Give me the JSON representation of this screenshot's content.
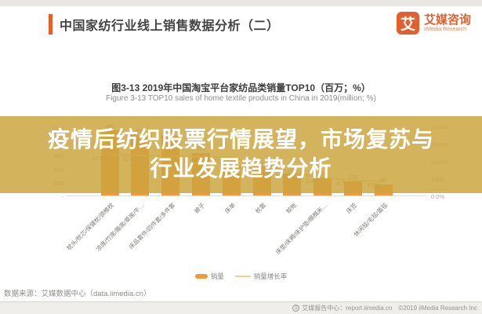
{
  "header": {
    "title": "中国家纺行业线上销售数据分析（二）",
    "logo": {
      "mark": "艾",
      "brand_cn": "艾媒咨询",
      "brand_en": "iiMedia Research"
    }
  },
  "figure": {
    "title_cn": "图3-13 2019年中国淘宝平台家纺品类销量TOP10（百万；%）",
    "title_en": "Figure 3-13 TOP10 sales of home textile products in China in 2019(million; %)"
  },
  "headline_overlay": {
    "line1": "疫情后纺织股票行情展望，市场复苏与",
    "line2": "行业发展趋势分析"
  },
  "chart_data": {
    "type": "bar",
    "subtype": "bar-line-combo",
    "title": "2019年中国淘宝平台家纺品类销量TOP10（百万；%）",
    "categories": [
      "枕头/枕芯/保健枕/颈椎枕",
      "凉席/竹席/藤席/草席/牛…",
      "床品套件/四件套/多件套",
      "被子",
      "床单",
      "枕套",
      "蚊帐",
      "床垫/床褥/床护垫/榻榻米…",
      "床笠",
      "休闲毯/毛毯/盖毯"
    ],
    "series": [
      {
        "name": "销量",
        "type": "bar",
        "color": "#ec9b40",
        "values": [
          480,
          450,
          440,
          314,
          219,
          214,
          160,
          130,
          103,
          80
        ]
      },
      {
        "name": "销量增长率",
        "type": "line",
        "color": "#efd287",
        "values": [
          12.1,
          11.8,
          11.6,
          11.4,
          11.3,
          9.6,
          6.8,
          5.4,
          4.7,
          4.3
        ]
      }
    ],
    "left_axis": {
      "label_unit": "百万",
      "ticks": [
        "-",
        "100",
        "200",
        "300",
        "400",
        "500"
      ],
      "tick_values": [
        0,
        100,
        200,
        300,
        400,
        500
      ],
      "ylim": [
        0,
        500
      ]
    },
    "right_axis": {
      "label_unit": "%",
      "ticks": [
        "0.0%",
        "5.0%",
        "10.0%",
        "15.0%",
        "20.0%"
      ],
      "tick_values": [
        0,
        5,
        10,
        15,
        20
      ],
      "ylim": [
        0,
        20
      ]
    },
    "legend": [
      "销量",
      "销量增长率"
    ],
    "legend_position": "bottom-center",
    "grid": false
  },
  "footer": {
    "source": "数据来源：艾媒数据中心（data.iimedia.cn）",
    "report_center": "艾媒报告中心：report.iimedia.cn",
    "copyright": "©2019  iiMedia Research Inc"
  }
}
